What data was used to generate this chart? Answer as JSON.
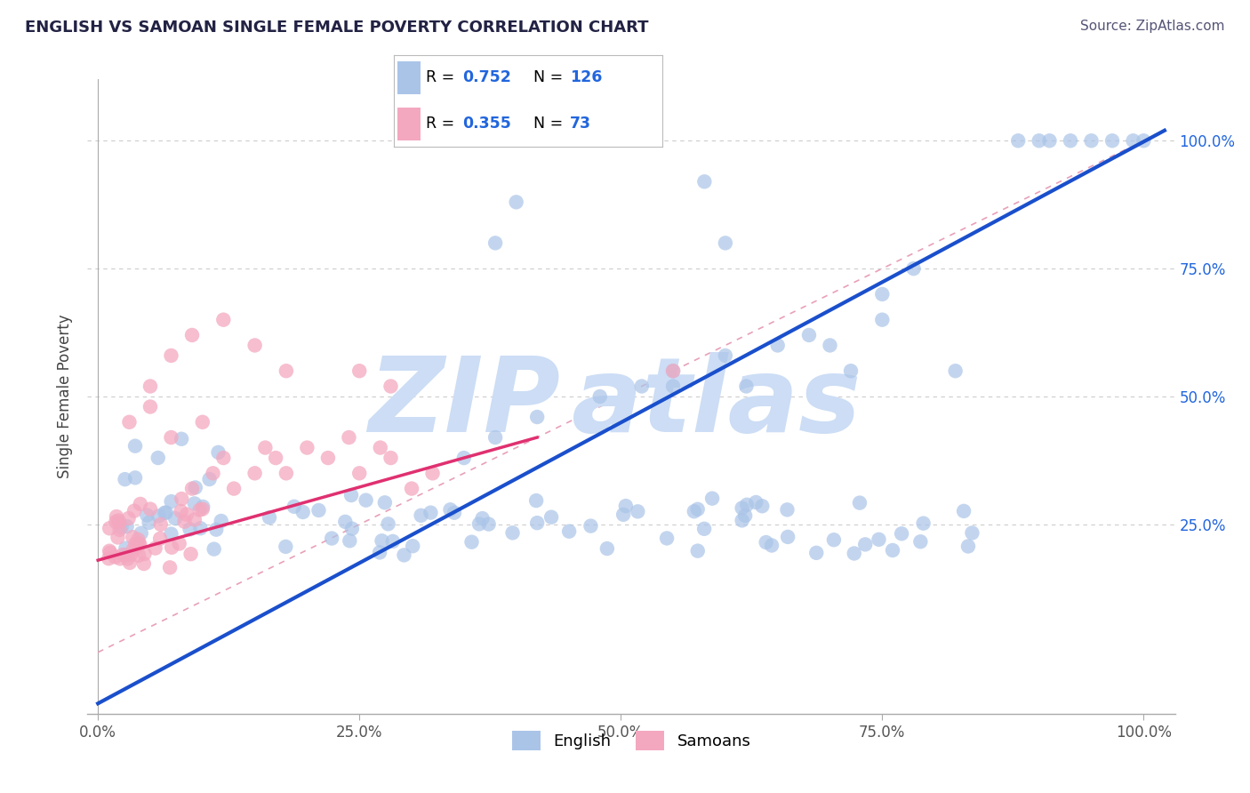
{
  "title": "ENGLISH VS SAMOAN SINGLE FEMALE POVERTY CORRELATION CHART",
  "source_text": "Source: ZipAtlas.com",
  "ylabel": "Single Female Poverty",
  "english_R": 0.752,
  "english_N": 126,
  "samoan_R": 0.355,
  "samoan_N": 73,
  "english_color": "#aac4e8",
  "samoan_color": "#f4a8c0",
  "english_line_color": "#1a4fcc",
  "samoan_line_color": "#e03070",
  "diagonal_color": "#e8a0b8",
  "grid_color": "#cccccc",
  "legend_value_color": "#2266dd",
  "watermark_color": "#ccddf5",
  "title_color": "#222244",
  "source_color": "#555577",
  "right_tick_color": "#2266dd",
  "background_color": "#ffffff",
  "xlim": [
    -0.01,
    1.03
  ],
  "ylim": [
    -0.12,
    1.12
  ],
  "xticks": [
    0.0,
    0.25,
    0.5,
    0.75,
    1.0
  ],
  "xtick_labels": [
    "0.0%",
    "25.0%",
    "50.0%",
    "75.0%",
    "100.0%"
  ],
  "yticks": [
    0.25,
    0.5,
    0.75,
    1.0
  ],
  "ytick_labels": [
    "25.0%",
    "50.0%",
    "75.0%",
    "100.0%"
  ],
  "blue_line_x": [
    0.0,
    1.02
  ],
  "blue_line_y": [
    -0.1,
    1.02
  ],
  "pink_line_x": [
    0.0,
    0.42
  ],
  "pink_line_y": [
    0.18,
    0.42
  ],
  "diag_line_x": [
    0.0,
    1.02
  ],
  "diag_line_y": [
    0.0,
    1.02
  ]
}
